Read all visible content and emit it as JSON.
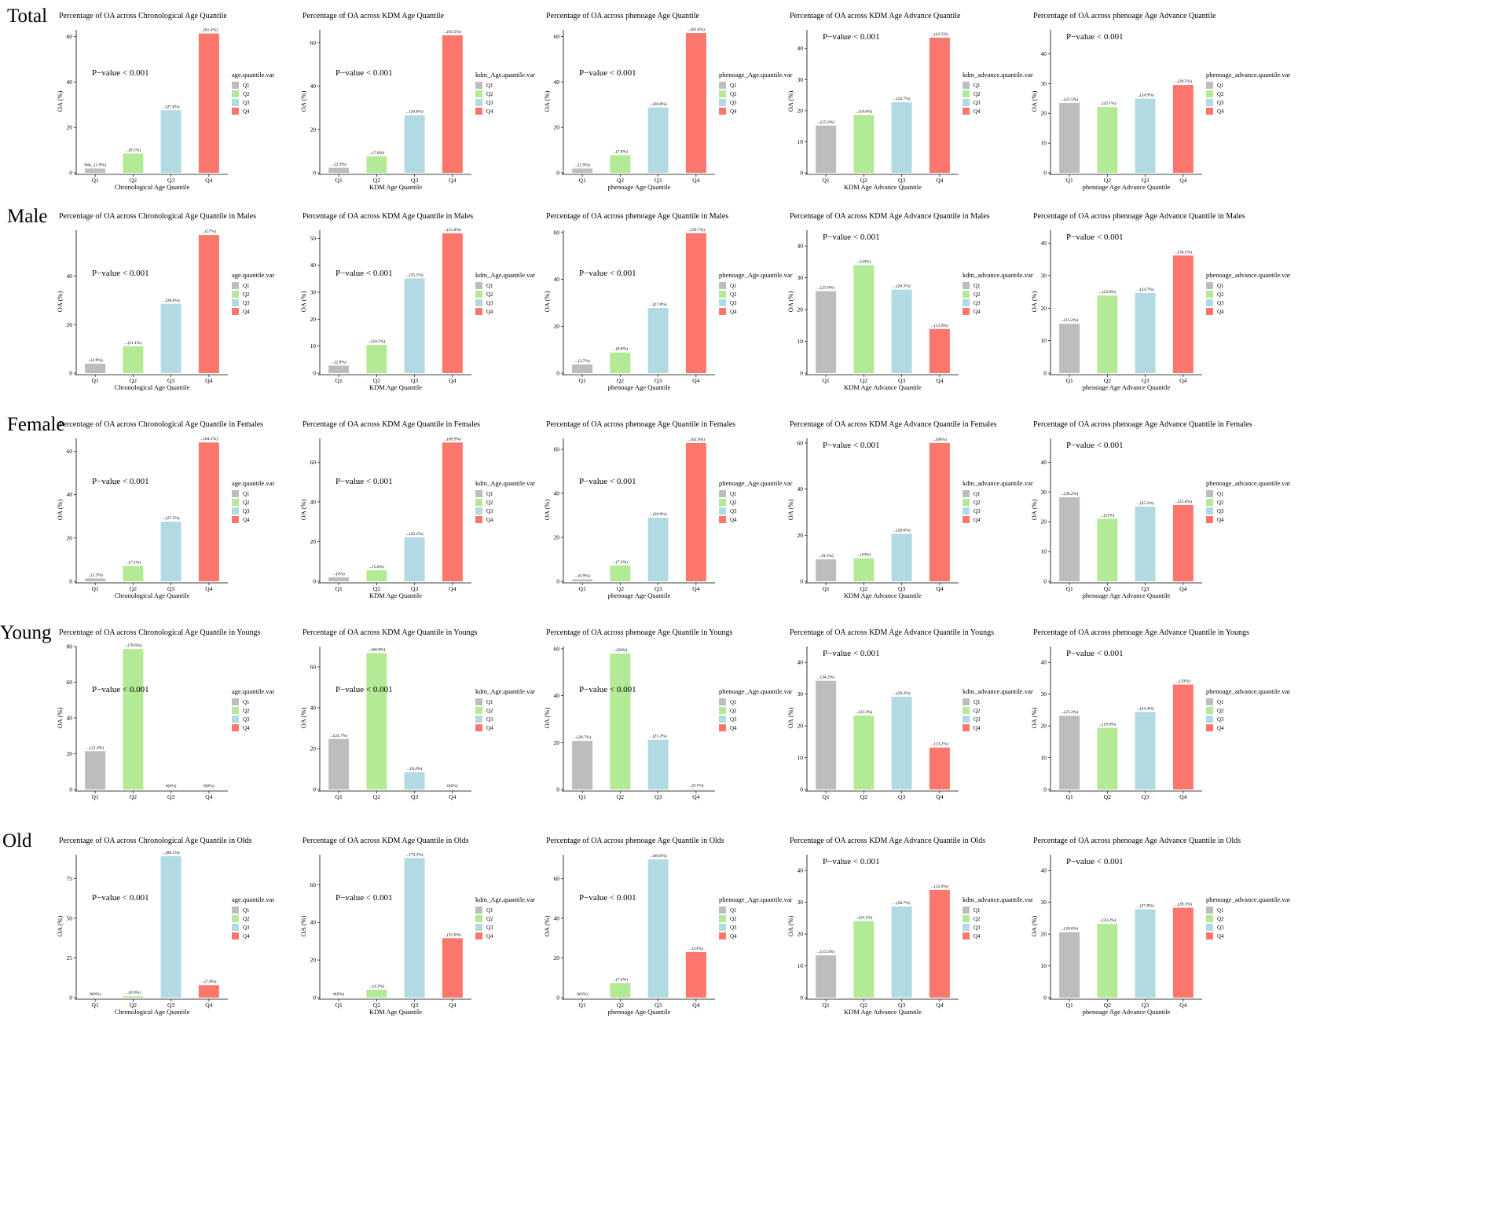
{
  "colors": {
    "Q1": "#bdbdbd",
    "Q2": "#b3ea96",
    "Q3": "#b1dae3",
    "Q4": "#fb766d"
  },
  "quartiles": [
    "Q1",
    "Q2",
    "Q3",
    "Q4"
  ],
  "rows": [
    "Total",
    "Male",
    "Female",
    "Young",
    "Old"
  ],
  "chart_data": [
    {
      "type": "bar",
      "title": "Percentage of OA across Chronological Age Quantile",
      "xlabel": "Chronological Age Quantile",
      "ylabel": "OA (%)",
      "legend_title": "age.quantile.var",
      "categories": [
        "Q1",
        "Q2",
        "Q3",
        "Q4"
      ],
      "values": [
        1.9,
        8.5,
        27.6,
        61.4
      ],
      "ylim": [
        0,
        63
      ],
      "yticks": [
        0,
        20,
        40,
        60
      ],
      "pvalue": "P−value < 0.001",
      "bar_labels": [
        "846...(1.9%)",
        "...(8.5%)",
        "...(27.6%)",
        "...(61.4%)"
      ]
    },
    {
      "type": "bar",
      "title": "Percentage of OA across KDM Age Quantile",
      "xlabel": "KDM Age Quantile",
      "ylabel": "OA (%)",
      "legend_title": "kdm_Age.quantile.var",
      "categories": [
        "Q1",
        "Q2",
        "Q3",
        "Q4"
      ],
      "values": [
        2.3,
        7.6,
        26.6,
        63.5
      ],
      "ylim": [
        0,
        66
      ],
      "yticks": [
        0,
        20,
        40,
        60
      ],
      "pvalue": "P−value < 0.001",
      "bar_labels": [
        "...(2.3%)",
        "...(7.6%)",
        "...(26.6%)",
        "...(63.5%)"
      ]
    },
    {
      "type": "bar",
      "title": "Percentage of OA across phenoage Age Quantile",
      "xlabel": "phenoage Age Quantile",
      "ylabel": "OA (%)",
      "legend_title": "phenoage_Age.quantile.var",
      "categories": [
        "Q1",
        "Q2",
        "Q3",
        "Q4"
      ],
      "values": [
        1.9,
        7.8,
        28.8,
        61.6
      ],
      "ylim": [
        0,
        63
      ],
      "yticks": [
        0,
        20,
        40,
        60
      ],
      "pvalue": "P−value < 0.001",
      "bar_labels": [
        "...(1.9%)",
        "...(7.8%)",
        "...(28.8%)",
        "...(61.6%)"
      ]
    },
    {
      "type": "bar",
      "title": "Percentage of OA across KDM Age Advance Quantile",
      "xlabel": "KDM Age Advance Quantile",
      "ylabel": "OA (%)",
      "legend_title": "kdm_advance.quantile.var",
      "categories": [
        "Q1",
        "Q2",
        "Q3",
        "Q4"
      ],
      "values": [
        15.2,
        18.6,
        22.7,
        43.5
      ],
      "ylim": [
        0,
        46
      ],
      "yticks": [
        0,
        10,
        20,
        30,
        40
      ],
      "pvalue": "P−value < 0.001",
      "bar_labels": [
        "...(15.2%)",
        "...(18.6%)",
        "...(22.7%)",
        "...(43.5%)"
      ]
    },
    {
      "type": "bar",
      "title": "Percentage of OA across phenoage Age Advance Quantile",
      "xlabel": "phenoage Age Advance Quantile",
      "ylabel": "OA (%)",
      "legend_title": "phenoage_advance.quantile.var",
      "categories": [
        "Q1",
        "Q2",
        "Q3",
        "Q4"
      ],
      "values": [
        23.5,
        22.1,
        24.9,
        29.5
      ],
      "ylim": [
        0,
        48
      ],
      "yticks": [
        0,
        10,
        20,
        30,
        40
      ],
      "pvalue": "P−value < 0.001",
      "bar_labels": [
        "...(23.5%)",
        "...(22.1%)",
        "...(24.9%)",
        "...(29.5%)"
      ]
    },
    {
      "type": "bar",
      "title": "Percentage of OA across Chronological Age Quantile in Males",
      "xlabel": "Chronological Age Quantile",
      "ylabel": "OA (%)",
      "legend_title": "age.quantile.var",
      "categories": [
        "Q1",
        "Q2",
        "Q3",
        "Q4"
      ],
      "values": [
        3.9,
        11.1,
        28.6,
        57.0
      ],
      "ylim": [
        0,
        59
      ],
      "yticks": [
        0,
        20,
        40
      ],
      "pvalue": "P−value < 0.001",
      "bar_labels": [
        "...(3.9%)",
        "...(11.1%)",
        "...(28.6%)",
        "...(57%)"
      ]
    },
    {
      "type": "bar",
      "title": "Percentage of OA across KDM Age Quantile in Males",
      "xlabel": "KDM Age Quantile",
      "ylabel": "OA (%)",
      "legend_title": "kdm_Age.quantile.var",
      "categories": [
        "Q1",
        "Q2",
        "Q3",
        "Q4"
      ],
      "values": [
        2.8,
        10.5,
        35.1,
        51.8
      ],
      "ylim": [
        0,
        53
      ],
      "yticks": [
        0,
        10,
        20,
        30,
        40,
        50
      ],
      "pvalue": "P−value < 0.001",
      "bar_labels": [
        "...(2.8%)",
        "...(10.5%)",
        "...(35.1%)",
        "...(51.8%)"
      ]
    },
    {
      "type": "bar",
      "title": "Percentage of OA across phenoage Age Quantile in Males",
      "xlabel": "phenoage Age Quantile",
      "ylabel": "OA (%)",
      "legend_title": "phenoage_Age.quantile.var",
      "categories": [
        "Q1",
        "Q2",
        "Q3",
        "Q4"
      ],
      "values": [
        3.7,
        8.8,
        27.8,
        59.7
      ],
      "ylim": [
        0,
        61
      ],
      "yticks": [
        0,
        20,
        40,
        60
      ],
      "pvalue": "P−value < 0.001",
      "bar_labels": [
        "...(3.7%)",
        "...(8.8%)",
        "...(27.8%)",
        "...(59.7%)"
      ]
    },
    {
      "type": "bar",
      "title": "Percentage of OA across KDM Age Advance Quantile in Males",
      "xlabel": "KDM Age Advance Quantile",
      "ylabel": "OA (%)",
      "legend_title": "kdm_advance.quantile.var",
      "categories": [
        "Q1",
        "Q2",
        "Q3",
        "Q4"
      ],
      "values": [
        25.8,
        34.0,
        26.3,
        13.9
      ],
      "ylim": [
        0,
        45
      ],
      "yticks": [
        0,
        10,
        20,
        30,
        40
      ],
      "pvalue": "P−value < 0.001",
      "bar_labels": [
        "...(25.8%)",
        "...(34%)",
        "...(26.3%)",
        "...(13.9%)"
      ]
    },
    {
      "type": "bar",
      "title": "Percentage of OA across phenoage Age Advance Quantile in Males",
      "xlabel": "phenoage Age Advance Quantile",
      "ylabel": "OA (%)",
      "legend_title": "phenoage_advance.quantile.var",
      "categories": [
        "Q1",
        "Q2",
        "Q3",
        "Q4"
      ],
      "values": [
        15.2,
        23.9,
        24.7,
        36.2
      ],
      "ylim": [
        0,
        44
      ],
      "yticks": [
        0,
        10,
        20,
        30,
        40
      ],
      "pvalue": "P−value < 0.001",
      "bar_labels": [
        "...(15.2%)",
        "...(23.9%)",
        "...(24.7%)",
        "...(36.2%)"
      ]
    },
    {
      "type": "bar",
      "title": "Percentage of OA across Chronological Age Quantile in Females",
      "xlabel": "Chronological Age Quantile",
      "ylabel": "OA (%)",
      "legend_title": "age.quantile.var",
      "categories": [
        "Q1",
        "Q2",
        "Q3",
        "Q4"
      ],
      "values": [
        1.3,
        7.1,
        27.5,
        64.1
      ],
      "ylim": [
        0,
        66
      ],
      "yticks": [
        0,
        20,
        40,
        60
      ],
      "pvalue": "P−value < 0.001",
      "bar_labels": [
        "...(1.3%)",
        "...(7.1%)",
        "...(27.5%)",
        "...(64.1%)"
      ]
    },
    {
      "type": "bar",
      "title": "Percentage of OA across KDM Age Quantile in Females",
      "xlabel": "KDM Age Quantile",
      "ylabel": "OA (%)",
      "legend_title": "kdm_Age.quantile.var",
      "categories": [
        "Q1",
        "Q2",
        "Q3",
        "Q4"
      ],
      "values": [
        2.0,
        5.6,
        22.1,
        69.9
      ],
      "ylim": [
        0,
        72
      ],
      "yticks": [
        0,
        20,
        40,
        60
      ],
      "pvalue": "P−value < 0.001",
      "bar_labels": [
        "...(2%)",
        "...(5.6%)",
        "...(22.1%)",
        "...(69.9%)"
      ]
    },
    {
      "type": "bar",
      "title": "Percentage of OA across phenoage Age Quantile in Females",
      "xlabel": "phenoage Age Quantile",
      "ylabel": "OA (%)",
      "legend_title": "phenoage_Age.quantile.var",
      "categories": [
        "Q1",
        "Q2",
        "Q3",
        "Q4"
      ],
      "values": [
        0.9,
        7.2,
        28.9,
        62.9
      ],
      "ylim": [
        0,
        65
      ],
      "yticks": [
        0,
        20,
        40,
        60
      ],
      "pvalue": "P−value < 0.001",
      "bar_labels": [
        "...(0.9%)",
        "...(7.2%)",
        "...(28.9%)",
        "...(62.9%)"
      ]
    },
    {
      "type": "bar",
      "title": "Percentage of OA across KDM Age Advance Quantile in Females",
      "xlabel": "KDM Age Advance Quantile",
      "ylabel": "OA (%)",
      "legend_title": "kdm_advance.quantile.var",
      "categories": [
        "Q1",
        "Q2",
        "Q3",
        "Q4"
      ],
      "values": [
        9.5,
        10.0,
        20.6,
        60.0
      ],
      "ylim": [
        0,
        62
      ],
      "yticks": [
        0,
        20,
        40,
        60
      ],
      "pvalue": "P−value < 0.001",
      "bar_labels": [
        "...(9.5%)",
        "...(10%)",
        "...(20.6%)",
        "...(60%)"
      ]
    },
    {
      "type": "bar",
      "title": "Percentage of OA across phenoage Age Advance Quantile in Females",
      "xlabel": "phenoage Age Advance Quantile",
      "ylabel": "OA (%)",
      "legend_title": "phenoage_advance.quantile.var",
      "categories": [
        "Q1",
        "Q2",
        "Q3",
        "Q4"
      ],
      "values": [
        28.2,
        21.0,
        25.1,
        25.6
      ],
      "ylim": [
        0,
        48
      ],
      "yticks": [
        0,
        10,
        20,
        30,
        40
      ],
      "pvalue": "P−value < 0.001",
      "bar_labels": [
        "...(28.2%)",
        "...(21%)",
        "...(25.1%)",
        "...(25.6%)"
      ]
    },
    {
      "type": "bar",
      "title": "Percentage of OA across Chronological Age Quantile in Youngs",
      "xlabel": "",
      "ylabel": "OA (%)",
      "legend_title": "age.quantile.var",
      "categories": [
        "Q1",
        "Q2",
        "Q3",
        "Q4"
      ],
      "values": [
        21.4,
        78.6,
        0,
        0
      ],
      "ylim": [
        0,
        80
      ],
      "yticks": [
        0,
        20,
        40,
        60,
        80
      ],
      "pvalue": "P−value < 0.001",
      "bar_labels": [
        "...(21.4%)",
        "...(78.6%)",
        "0(0%)",
        "0(0%)"
      ]
    },
    {
      "type": "bar",
      "title": "Percentage of OA across KDM Age Quantile in Youngs",
      "xlabel": "",
      "ylabel": "OA (%)",
      "legend_title": "kdm_Age.quantile.var",
      "categories": [
        "Q1",
        "Q2",
        "Q3",
        "Q4"
      ],
      "values": [
        24.7,
        66.8,
        8.4,
        0
      ],
      "ylim": [
        0,
        70
      ],
      "yticks": [
        0,
        20,
        40,
        60
      ],
      "pvalue": "P−value < 0.001",
      "bar_labels": [
        "...(24.7%)",
        "...(66.8%)",
        "...(8.4%)",
        "0(0%)"
      ]
    },
    {
      "type": "bar",
      "title": "Percentage of OA across phenoage Age Quantile in Youngs",
      "xlabel": "",
      "ylabel": "OA (%)",
      "legend_title": "phenoage_Age.quantile.var",
      "categories": [
        "Q1",
        "Q2",
        "Q3",
        "Q4"
      ],
      "values": [
        20.7,
        58.0,
        21.2,
        0.1
      ],
      "ylim": [
        0,
        61
      ],
      "yticks": [
        0,
        20,
        40,
        60
      ],
      "pvalue": "P−value < 0.001",
      "bar_labels": [
        "...(20.7%)",
        "...(58%)",
        "...(21.2%)",
        "...(0.1%)"
      ]
    },
    {
      "type": "bar",
      "title": "Percentage of OA across KDM Age Advance Quantile in Youngs",
      "xlabel": "",
      "ylabel": "OA (%)",
      "legend_title": "kdm_advance.quantile.var",
      "categories": [
        "Q1",
        "Q2",
        "Q3",
        "Q4"
      ],
      "values": [
        34.2,
        23.3,
        29.2,
        13.2
      ],
      "ylim": [
        0,
        45
      ],
      "yticks": [
        0,
        10,
        20,
        30,
        40
      ],
      "pvalue": "P−value < 0.001",
      "bar_labels": [
        "...(34.2%)",
        "...(23.3%)",
        "...(29.2%)",
        "...(13.2%)"
      ]
    },
    {
      "type": "bar",
      "title": "Percentage of OA across phenoage Age Advance Quantile in Youngs",
      "xlabel": "",
      "ylabel": "OA (%)",
      "legend_title": "phenoage_advance.quantile.var",
      "categories": [
        "Q1",
        "Q2",
        "Q3",
        "Q4"
      ],
      "values": [
        23.2,
        19.4,
        24.4,
        33.0
      ],
      "ylim": [
        0,
        45
      ],
      "yticks": [
        0,
        10,
        20,
        30,
        40
      ],
      "pvalue": "P−value < 0.001",
      "bar_labels": [
        "...(23.2%)",
        "...(19.4%)",
        "...(24.4%)",
        "...(33%)"
      ]
    },
    {
      "type": "bar",
      "title": "Percentage of OA across Chronological Age Quantile in Olds",
      "xlabel": "Chronological Age Quantile",
      "ylabel": "OA (%)",
      "legend_title": "age.quantile.var",
      "categories": [
        "Q1",
        "Q2",
        "Q3",
        "Q4"
      ],
      "values": [
        0,
        0.9,
        89.1,
        7.8
      ],
      "ylim": [
        0,
        90
      ],
      "yticks": [
        0,
        25,
        50,
        75
      ],
      "pvalue": "P−value < 0.001",
      "bar_labels": [
        "0(0%)",
        "...(0.9%)",
        "...(89.1%)",
        "...(7.8%)"
      ]
    },
    {
      "type": "bar",
      "title": "Percentage of OA across KDM Age Quantile in Olds",
      "xlabel": "KDM Age Quantile",
      "ylabel": "OA (%)",
      "legend_title": "kdm_Age.quantile.var",
      "categories": [
        "Q1",
        "Q2",
        "Q3",
        "Q4"
      ],
      "values": [
        0,
        4.2,
        74.2,
        31.6
      ],
      "ylim": [
        0,
        76
      ],
      "yticks": [
        0,
        20,
        40,
        60
      ],
      "pvalue": "P−value < 0.001",
      "bar_labels": [
        "0(0%)",
        "...(4.2%)",
        "...(74.2%)",
        "...(31.6%)"
      ]
    },
    {
      "type": "bar",
      "title": "Percentage of OA across phenoage Age Quantile in Olds",
      "xlabel": "phenoage Age Quantile",
      "ylabel": "OA (%)",
      "legend_title": "phenoage_Age.quantile.var",
      "categories": [
        "Q1",
        "Q2",
        "Q3",
        "Q4"
      ],
      "values": [
        0,
        7.4,
        69.6,
        23.0
      ],
      "ylim": [
        0,
        72
      ],
      "yticks": [
        0,
        20,
        40,
        60
      ],
      "pvalue": "P−value < 0.001",
      "bar_labels": [
        "0(0%)",
        "...(7.4%)",
        "...(69.6%)",
        "...(23%)"
      ]
    },
    {
      "type": "bar",
      "title": "Percentage of OA across KDM Age Advance Quantile in Olds",
      "xlabel": "KDM Age Advance Quantile",
      "ylabel": "OA (%)",
      "legend_title": "kdm_advance.quantile.var",
      "categories": [
        "Q1",
        "Q2",
        "Q3",
        "Q4"
      ],
      "values": [
        13.3,
        24.1,
        28.7,
        33.9
      ],
      "ylim": [
        0,
        45
      ],
      "yticks": [
        0,
        10,
        20,
        30,
        40
      ],
      "pvalue": "P−value < 0.001",
      "bar_labels": [
        "...(13.3%)",
        "...(24.1%)",
        "...(28.7%)",
        "...(33.9%)"
      ]
    },
    {
      "type": "bar",
      "title": "Percentage of OA across phenoage Age Advance Quantile in Olds",
      "xlabel": "phenoage Age Advance Quantile",
      "ylabel": "OA (%)",
      "legend_title": "phenoage_advance.quantile.var",
      "categories": [
        "Q1",
        "Q2",
        "Q3",
        "Q4"
      ],
      "values": [
        20.6,
        23.2,
        27.8,
        28.3
      ],
      "ylim": [
        0,
        45
      ],
      "yticks": [
        0,
        10,
        20,
        30,
        40
      ],
      "pvalue": "P−value < 0.001",
      "bar_labels": [
        "...(20.6%)",
        "...(23.2%)",
        "...(27.8%)",
        "...(28.3%)"
      ]
    }
  ]
}
